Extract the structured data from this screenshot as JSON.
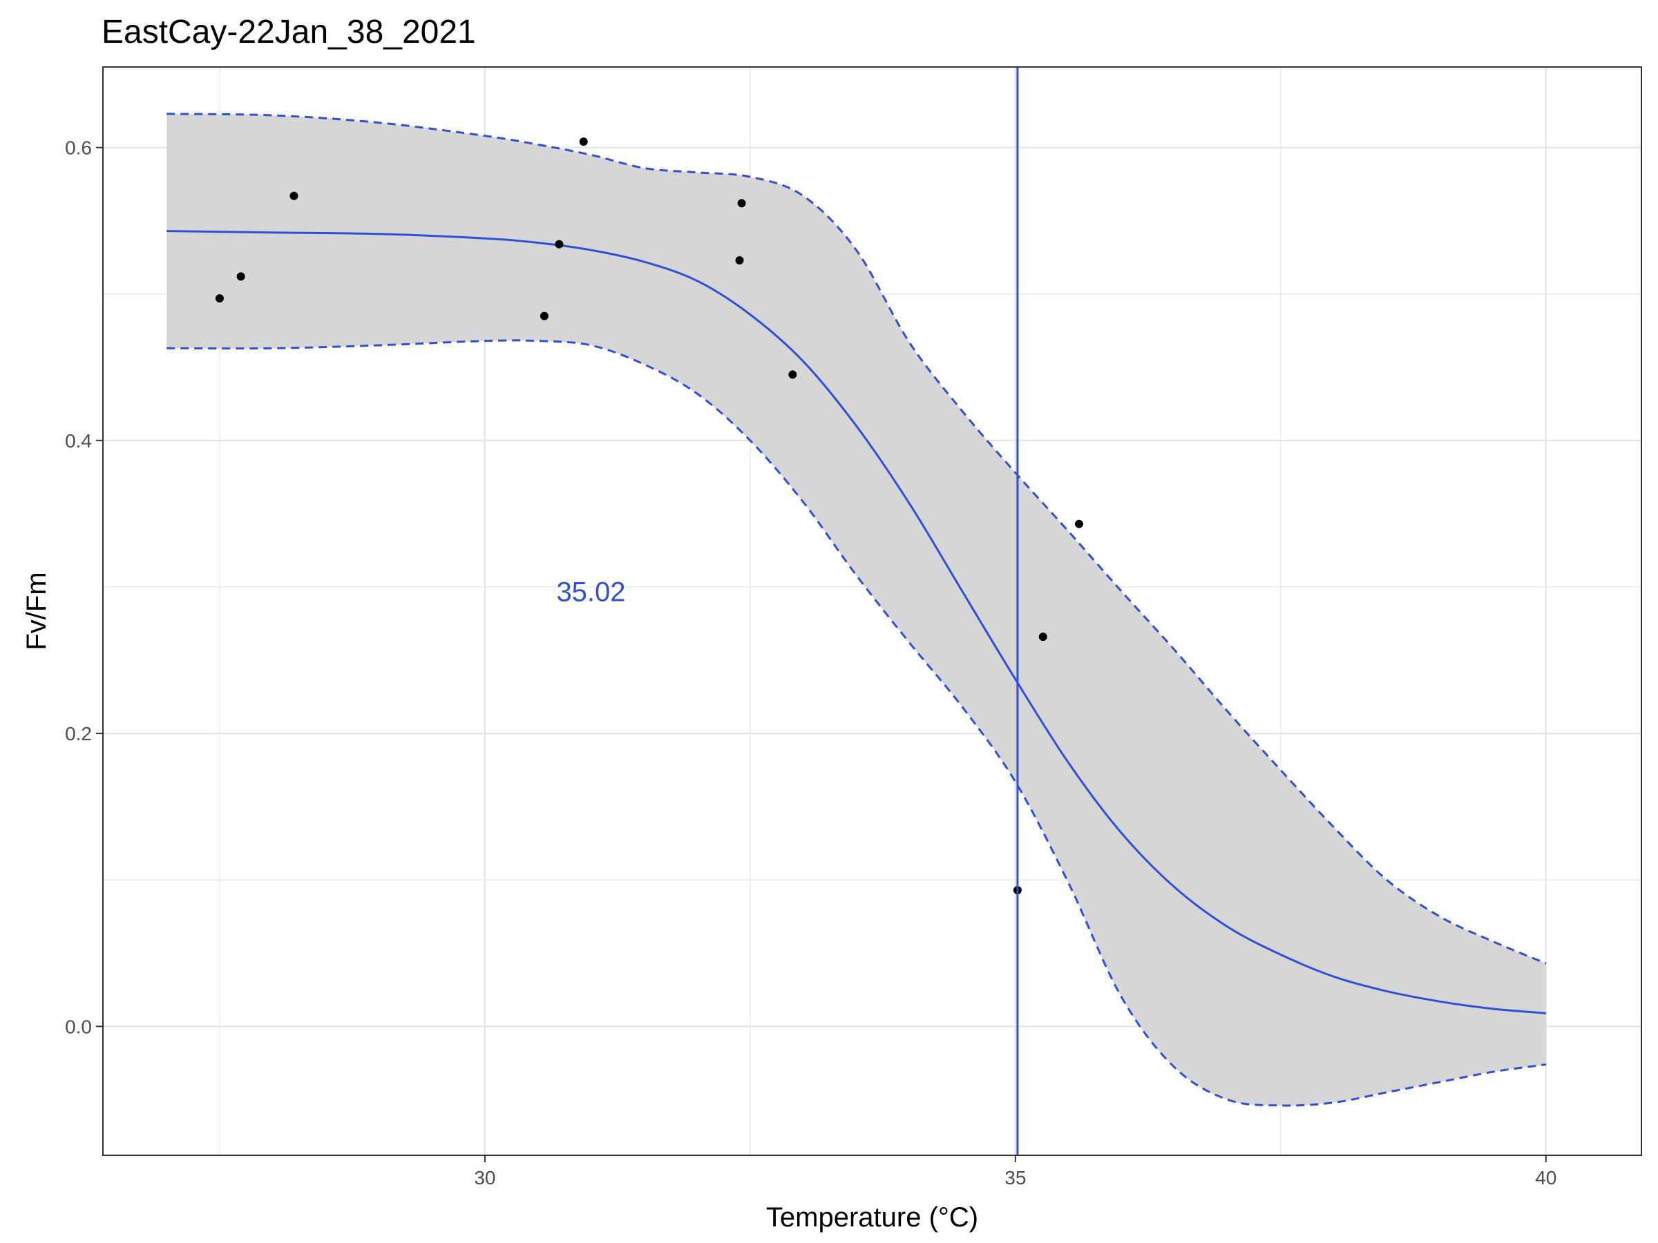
{
  "chart_data": {
    "type": "line",
    "title": "EastCay-22Jan_38_2021",
    "xlabel": "Temperature (°C)",
    "ylabel": "Fv/Fm",
    "xlim": [
      26.4,
      40.9
    ],
    "ylim": [
      -0.088,
      0.655
    ],
    "x_ticks": [
      30,
      35,
      40
    ],
    "x_tick_labels": [
      "30",
      "35",
      "40"
    ],
    "y_ticks": [
      0.0,
      0.2,
      0.4,
      0.6
    ],
    "y_tick_labels": [
      "0.0",
      "0.2",
      "0.4",
      "0.6"
    ],
    "x_minor_ticks": [
      27.5,
      32.5,
      37.5
    ],
    "y_minor_ticks": [
      0.1,
      0.3,
      0.5
    ],
    "grid": true,
    "colors": {
      "fit": "#2f4fd6",
      "ribbon": "#d4d4d4",
      "points": "#000000",
      "grid": "#e5e5e5",
      "panel_border": "#333333",
      "annotation": "#2f4fd6"
    },
    "vline": {
      "x": 35.02
    },
    "annotation": {
      "text": "35.02",
      "x": 31.0,
      "y": 0.297
    },
    "points": [
      {
        "x": 27.5,
        "y": 0.497
      },
      {
        "x": 27.7,
        "y": 0.512
      },
      {
        "x": 28.2,
        "y": 0.567
      },
      {
        "x": 30.56,
        "y": 0.485
      },
      {
        "x": 30.7,
        "y": 0.534
      },
      {
        "x": 30.93,
        "y": 0.604
      },
      {
        "x": 32.4,
        "y": 0.523
      },
      {
        "x": 32.42,
        "y": 0.562
      },
      {
        "x": 32.9,
        "y": 0.445
      },
      {
        "x": 35.02,
        "y": 0.093
      },
      {
        "x": 35.26,
        "y": 0.266
      },
      {
        "x": 35.6,
        "y": 0.343
      }
    ],
    "series": [
      {
        "role": "fit",
        "x": [
          27.0,
          28.0,
          29.0,
          30.0,
          30.5,
          31.0,
          31.5,
          32.0,
          32.5,
          33.0,
          33.5,
          34.0,
          34.5,
          35.0,
          35.5,
          36.0,
          36.5,
          37.0,
          37.5,
          38.0,
          38.5,
          39.0,
          39.5,
          40.0
        ],
        "y": [
          0.543,
          0.542,
          0.541,
          0.538,
          0.535,
          0.53,
          0.522,
          0.509,
          0.486,
          0.454,
          0.41,
          0.357,
          0.297,
          0.237,
          0.18,
          0.132,
          0.095,
          0.068,
          0.049,
          0.034,
          0.024,
          0.017,
          0.012,
          0.009
        ]
      },
      {
        "role": "upper_bound",
        "x": [
          27.0,
          28.0,
          29.0,
          30.0,
          30.5,
          31.0,
          31.5,
          32.0,
          32.5,
          33.0,
          33.5,
          34.0,
          34.5,
          35.0,
          35.5,
          36.0,
          36.5,
          37.0,
          37.5,
          38.0,
          38.5,
          39.0,
          39.5,
          40.0
        ],
        "y": [
          0.623,
          0.622,
          0.617,
          0.608,
          0.602,
          0.595,
          0.586,
          0.583,
          0.58,
          0.567,
          0.53,
          0.467,
          0.42,
          0.378,
          0.338,
          0.297,
          0.257,
          0.215,
          0.175,
          0.136,
          0.1,
          0.075,
          0.058,
          0.043
        ]
      },
      {
        "role": "lower_bound",
        "x": [
          27.0,
          28.0,
          29.0,
          30.0,
          30.5,
          31.0,
          31.5,
          32.0,
          32.5,
          33.0,
          33.5,
          34.0,
          34.5,
          35.0,
          35.5,
          36.0,
          36.5,
          37.0,
          37.5,
          38.0,
          38.5,
          39.0,
          39.5,
          40.0
        ],
        "y": [
          0.463,
          0.463,
          0.465,
          0.468,
          0.468,
          0.465,
          0.452,
          0.432,
          0.4,
          0.358,
          0.308,
          0.262,
          0.218,
          0.167,
          0.098,
          0.02,
          -0.028,
          -0.05,
          -0.054,
          -0.052,
          -0.045,
          -0.038,
          -0.031,
          -0.026
        ]
      }
    ]
  }
}
